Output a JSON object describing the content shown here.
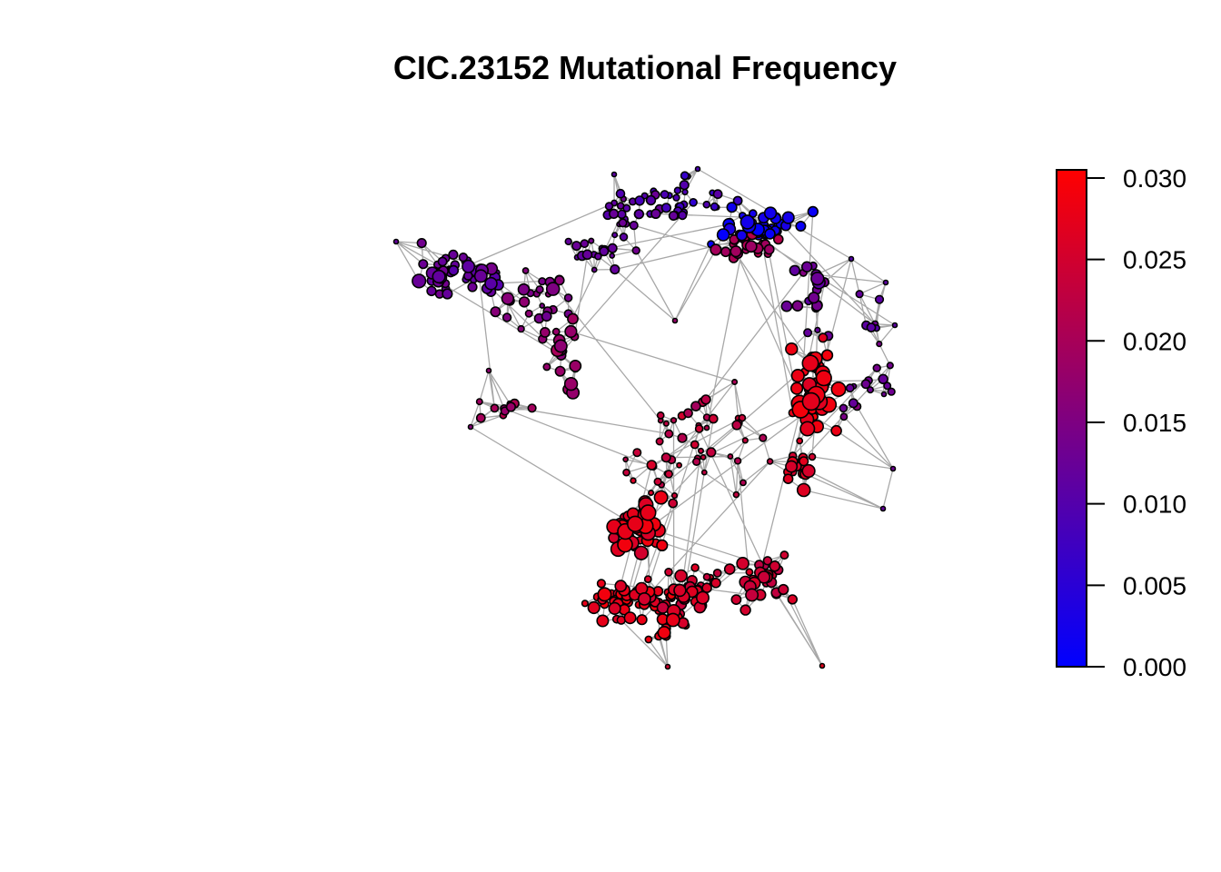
{
  "chart_data": {
    "type": "network",
    "title": "CIC.23152 Mutational Frequency",
    "color_scale": {
      "low_color": "#0000ff",
      "high_color": "#ff0000",
      "range": [
        0,
        0.0305
      ],
      "ticks": [
        {
          "value": 0.0,
          "label": "0.000"
        },
        {
          "value": 0.005,
          "label": "0.005"
        },
        {
          "value": 0.01,
          "label": "0.010"
        },
        {
          "value": 0.015,
          "label": "0.015"
        },
        {
          "value": 0.02,
          "label": "0.020"
        },
        {
          "value": 0.025,
          "label": "0.025"
        },
        {
          "value": 0.03,
          "label": "0.030"
        }
      ]
    },
    "edge_color": "#a8a8a8",
    "node_outline": "#000000",
    "legend_position": "right"
  }
}
